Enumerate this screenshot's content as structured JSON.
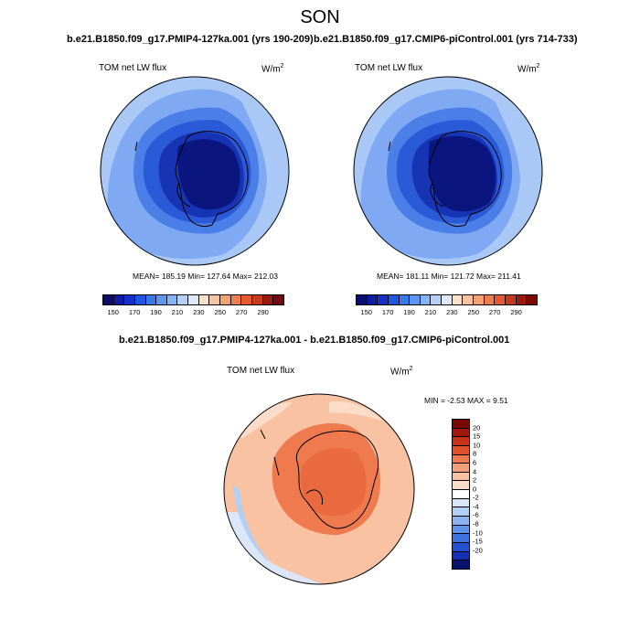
{
  "figure_title": "SON",
  "panels": [
    {
      "title": "b.e21.B1850.f09_g17.PMIP4-127ka.001 (yrs 190-209)",
      "variable_label": "TOM net LW flux",
      "units": "W/m",
      "units_exp": "2",
      "stats": "MEAN= 185.19  Min= 127.64  Max= 212.03"
    },
    {
      "title": "b.e21.B1850.f09_g17.CMIP6-piControl.001 (yrs 714-733)",
      "variable_label": "TOM net LW flux",
      "units": "W/m",
      "units_exp": "2",
      "stats": "MEAN= 181.11  Min= 121.72  Max= 211.41"
    }
  ],
  "diff_panel": {
    "title": "b.e21.B1850.f09_g17.PMIP4-127ka.001 - b.e21.B1850.f09_g17.CMIP6-piControl.001",
    "variable_label": "TOM net LW flux",
    "units": "W/m",
    "units_exp": "2",
    "stats": "MIN =  -2.53 MAX =   9.51"
  },
  "abs_colorbar": {
    "colors": [
      "#0a0f6e",
      "#0c1d9e",
      "#1432c8",
      "#2255e0",
      "#3a78ea",
      "#5b96f0",
      "#85b3f5",
      "#b5d1f8",
      "#dfe9f8",
      "#fbe1cc",
      "#f8c2a0",
      "#f4a075",
      "#ee7d50",
      "#e35a30",
      "#c63a1c",
      "#9c1a0e",
      "#7a0a06"
    ],
    "labels": [
      "150",
      "170",
      "190",
      "210",
      "230",
      "250",
      "270",
      "290"
    ]
  },
  "diff_colorbar": {
    "colors": [
      "#7a0a06",
      "#a3170d",
      "#c63218",
      "#e0502a",
      "#ee7a4e",
      "#f3a079",
      "#f8c2a3",
      "#fbdcc8",
      "#ffffff",
      "#dbe7f8",
      "#b3cff4",
      "#8ab3ef",
      "#5f92ea",
      "#3d70e0",
      "#2450d2",
      "#1431b5",
      "#0a1470"
    ],
    "labels": [
      "20",
      "15",
      "10",
      "8",
      "6",
      "4",
      "2",
      "0",
      "-2",
      "-4",
      "-6",
      "-8",
      "-10",
      "-15",
      "-20"
    ]
  }
}
